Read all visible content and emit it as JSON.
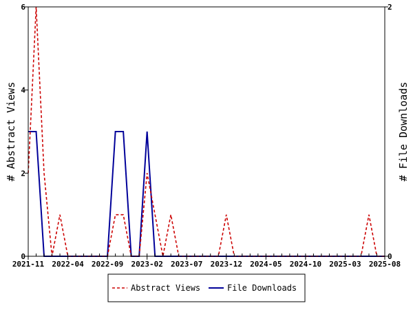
{
  "chart_data": {
    "type": "line",
    "title": "",
    "x_ticks": [
      "2021-11",
      "2022-04",
      "2022-09",
      "2023-02",
      "2023-07",
      "2023-12",
      "2024-05",
      "2024-10",
      "2025-03",
      "2025-08"
    ],
    "y_left": {
      "label": "# Abstract Views",
      "range": [
        0,
        6
      ],
      "ticks": [
        "0",
        "2",
        "4",
        "6"
      ]
    },
    "y_right": {
      "label": "# File Downloads",
      "range": [
        0,
        2
      ],
      "ticks": [
        "0",
        "2"
      ]
    },
    "grid": false,
    "legend_position": "bottom",
    "series": [
      {
        "name": "Abstract Views",
        "axis": "left",
        "color": "#cc0000",
        "style": "dashed",
        "points": [
          [
            "2021-11",
            2
          ],
          [
            "2021-12",
            6
          ],
          [
            "2022-01",
            2
          ],
          [
            "2022-02",
            0
          ],
          [
            "2022-03",
            1
          ],
          [
            "2022-04",
            0
          ],
          [
            "2022-05",
            0
          ],
          [
            "2022-06",
            0
          ],
          [
            "2022-07",
            0
          ],
          [
            "2022-08",
            0
          ],
          [
            "2022-09",
            0
          ],
          [
            "2022-10",
            1
          ],
          [
            "2022-11",
            1
          ],
          [
            "2022-12",
            0
          ],
          [
            "2023-01",
            0
          ],
          [
            "2023-02",
            2
          ],
          [
            "2023-03",
            1
          ],
          [
            "2023-04",
            0
          ],
          [
            "2023-05",
            1
          ],
          [
            "2023-06",
            0
          ],
          [
            "2023-07",
            0
          ],
          [
            "2023-08",
            0
          ],
          [
            "2023-09",
            0
          ],
          [
            "2023-10",
            0
          ],
          [
            "2023-11",
            0
          ],
          [
            "2023-12",
            1
          ],
          [
            "2024-01",
            0
          ],
          [
            "2024-02",
            0
          ],
          [
            "2024-03",
            0
          ],
          [
            "2024-04",
            0
          ],
          [
            "2024-05",
            0
          ],
          [
            "2024-06",
            0
          ],
          [
            "2024-07",
            0
          ],
          [
            "2024-08",
            0
          ],
          [
            "2024-09",
            0
          ],
          [
            "2024-10",
            0
          ],
          [
            "2024-11",
            0
          ],
          [
            "2024-12",
            0
          ],
          [
            "2025-01",
            0
          ],
          [
            "2025-02",
            0
          ],
          [
            "2025-03",
            0
          ],
          [
            "2025-04",
            0
          ],
          [
            "2025-05",
            0
          ],
          [
            "2025-06",
            1
          ],
          [
            "2025-07",
            0
          ],
          [
            "2025-08",
            0
          ]
        ]
      },
      {
        "name": "File Downloads",
        "axis": "right",
        "color": "#000099",
        "style": "solid",
        "points": [
          [
            "2021-11",
            1
          ],
          [
            "2021-12",
            1
          ],
          [
            "2022-01",
            0
          ],
          [
            "2022-02",
            0
          ],
          [
            "2022-03",
            0
          ],
          [
            "2022-04",
            0
          ],
          [
            "2022-05",
            0
          ],
          [
            "2022-06",
            0
          ],
          [
            "2022-07",
            0
          ],
          [
            "2022-08",
            0
          ],
          [
            "2022-09",
            0
          ],
          [
            "2022-10",
            1
          ],
          [
            "2022-11",
            1
          ],
          [
            "2022-12",
            0
          ],
          [
            "2023-01",
            0
          ],
          [
            "2023-02",
            1
          ],
          [
            "2023-03",
            0
          ],
          [
            "2023-04",
            0
          ],
          [
            "2023-05",
            0
          ],
          [
            "2023-06",
            0
          ],
          [
            "2023-07",
            0
          ],
          [
            "2023-08",
            0
          ],
          [
            "2023-09",
            0
          ],
          [
            "2023-10",
            0
          ],
          [
            "2023-11",
            0
          ],
          [
            "2023-12",
            0
          ],
          [
            "2024-01",
            0
          ],
          [
            "2024-02",
            0
          ],
          [
            "2024-03",
            0
          ],
          [
            "2024-04",
            0
          ],
          [
            "2024-05",
            0
          ],
          [
            "2024-06",
            0
          ],
          [
            "2024-07",
            0
          ],
          [
            "2024-08",
            0
          ],
          [
            "2024-09",
            0
          ],
          [
            "2024-10",
            0
          ],
          [
            "2024-11",
            0
          ],
          [
            "2024-12",
            0
          ],
          [
            "2025-01",
            0
          ],
          [
            "2025-02",
            0
          ],
          [
            "2025-03",
            0
          ],
          [
            "2025-04",
            0
          ],
          [
            "2025-05",
            0
          ],
          [
            "2025-06",
            0
          ],
          [
            "2025-07",
            0
          ],
          [
            "2025-08",
            0
          ]
        ]
      }
    ]
  }
}
